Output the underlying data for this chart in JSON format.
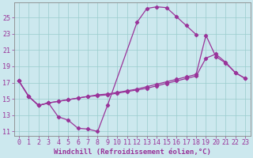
{
  "xlabel": "Windchill (Refroidissement éolien,°C)",
  "bg_color": "#cce8ee",
  "line_color": "#993399",
  "grid_color": "#99cccc",
  "text_color": "#993399",
  "xlim": [
    -0.5,
    23.5
  ],
  "ylim": [
    10.5,
    26.8
  ],
  "xticks": [
    0,
    1,
    2,
    3,
    4,
    5,
    6,
    7,
    8,
    9,
    10,
    11,
    12,
    13,
    14,
    15,
    16,
    17,
    18,
    19,
    20,
    21,
    22,
    23
  ],
  "yticks": [
    11,
    13,
    15,
    17,
    19,
    21,
    23,
    25
  ],
  "line1_x": [
    0,
    1,
    2,
    3,
    4,
    5,
    6,
    7,
    8,
    9,
    12,
    13,
    14,
    15,
    16,
    17,
    18
  ],
  "line1_y": [
    17.2,
    15.3,
    14.2,
    14.5,
    12.8,
    12.4,
    11.4,
    11.3,
    11.0,
    14.2,
    24.4,
    26.1,
    26.3,
    26.2,
    25.1,
    24.0,
    22.9
  ],
  "line2_x": [
    0,
    1,
    2,
    3,
    4,
    5,
    6,
    7,
    8,
    9,
    10,
    11,
    12,
    13,
    14,
    15,
    16,
    17,
    18,
    19,
    20,
    21,
    22,
    23
  ],
  "line2_y": [
    17.2,
    15.3,
    14.2,
    14.5,
    14.7,
    14.9,
    15.1,
    15.3,
    15.5,
    15.6,
    15.8,
    16.0,
    16.2,
    16.5,
    16.8,
    17.1,
    17.4,
    17.7,
    18.0,
    22.8,
    20.2,
    19.4,
    18.2,
    17.5
  ],
  "line3_x": [
    0,
    1,
    2,
    3,
    4,
    5,
    6,
    7,
    8,
    9,
    10,
    11,
    12,
    13,
    14,
    15,
    16,
    17,
    18,
    19,
    20,
    21,
    22,
    23
  ],
  "line3_y": [
    17.2,
    15.3,
    14.2,
    14.5,
    14.7,
    14.9,
    15.1,
    15.3,
    15.4,
    15.5,
    15.7,
    15.9,
    16.1,
    16.3,
    16.6,
    16.9,
    17.2,
    17.5,
    17.8,
    20.0,
    20.5,
    19.5,
    18.2,
    17.5
  ],
  "marker_size": 2.2,
  "line_width": 0.9,
  "font_family": "monospace",
  "xlabel_fontsize": 6.5,
  "tick_fontsize": 6.0
}
